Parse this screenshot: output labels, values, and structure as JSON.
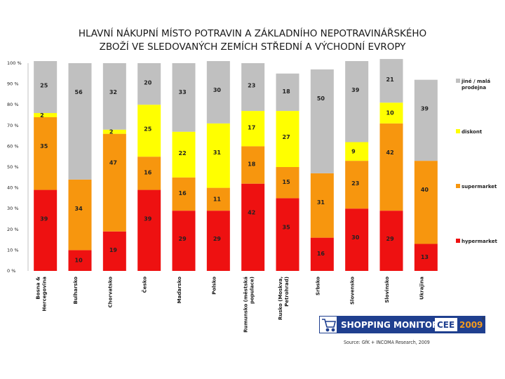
{
  "chart_data": {
    "type": "bar",
    "stacked": "percent",
    "title_lines": [
      "HLAVNÍ NÁKUPNÍ MÍSTO POTRAVIN A ZÁKLADNÍHO NEPOTRAVINÁŘSKÉHO",
      "ZBOŽÍ VE SLEDOVANÝCH ZEMÍCH STŘEDNÍ A VÝCHODNÍ EVROPY"
    ],
    "categories": [
      "Bosna & Hercegovina",
      "Bulharsko",
      "Chorvatsko",
      "Česko",
      "Maďarsko",
      "Polsko",
      "Rumunsko (městská populace)",
      "Rusko (Moskva, Petrohrad)",
      "Srbsko",
      "Slovensko",
      "Slovinsko",
      "Ukrajina"
    ],
    "category_label_lines": [
      [
        "Bosna &",
        "Hercegovina"
      ],
      [
        "Bulharsko"
      ],
      [
        "Chorvatsko"
      ],
      [
        "Česko"
      ],
      [
        "Maďarsko"
      ],
      [
        "Polsko"
      ],
      [
        "Rumunsko (městská",
        "populace)"
      ],
      [
        "Rusko (Moskva,",
        "Petrohrad)"
      ],
      [
        "Srbsko"
      ],
      [
        "Slovensko"
      ],
      [
        "Slovinsko"
      ],
      [
        "Ukrajina"
      ]
    ],
    "series": [
      {
        "name": "hypermarket",
        "color": "#ee1111",
        "values": [
          39,
          10,
          19,
          39,
          29,
          29,
          42,
          35,
          16,
          30,
          29,
          13
        ]
      },
      {
        "name": "supermarket",
        "color": "#f7960e",
        "values": [
          35,
          34,
          47,
          16,
          16,
          11,
          18,
          15,
          31,
          23,
          42,
          40
        ]
      },
      {
        "name": "diskont",
        "color": "#ffff00",
        "values": [
          2,
          0,
          2,
          25,
          22,
          31,
          17,
          27,
          0,
          9,
          10,
          0
        ]
      },
      {
        "name": "jiné / malá prodejna",
        "color": "#c0c0c0",
        "values": [
          25,
          56,
          32,
          20,
          33,
          30,
          23,
          18,
          50,
          39,
          21,
          39
        ]
      }
    ],
    "legend": [
      {
        "series": "jiné / malá prodejna",
        "lines": [
          "jiné / malá",
          "prodejna"
        ]
      },
      {
        "series": "diskont",
        "lines": [
          "diskont"
        ]
      },
      {
        "series": "supermarket",
        "lines": [
          "supermarket"
        ]
      },
      {
        "series": "hypermarket",
        "lines": [
          "hypermarket"
        ]
      }
    ],
    "legend_position": "right",
    "y_ticks": [
      "100 %",
      "90 %",
      "80 %",
      "70 %",
      "60 %",
      "50 %",
      "40 %",
      "30 %",
      "20 %",
      "10 %",
      "0 %"
    ],
    "ylim": [
      0,
      100
    ],
    "grid": false
  },
  "logo": {
    "text": "SHOPPING MONITOR",
    "highlight": "CEE",
    "year": "2009",
    "registered": "®"
  },
  "source": "Source: GfK + INCOMA Research, 2009",
  "colors": {
    "hypermarket": "#ee1111",
    "supermarket": "#f7960e",
    "diskont": "#ffff00",
    "other": "#c0c0c0",
    "logo_blue": "#1f3f8f",
    "logo_orange": "#f39a1e"
  }
}
